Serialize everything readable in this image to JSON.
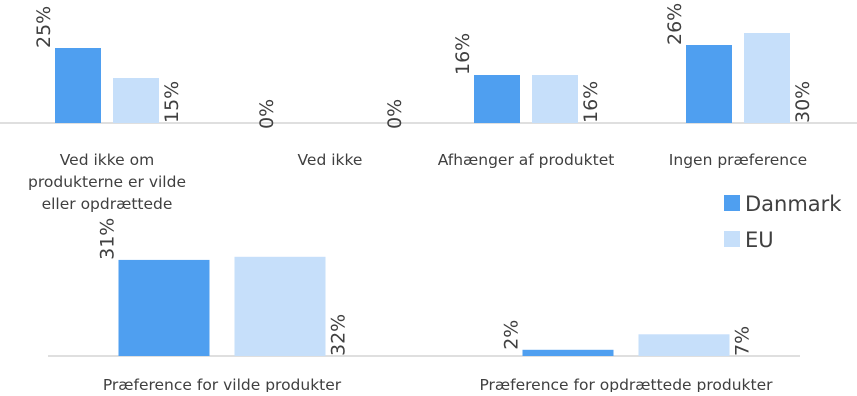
{
  "colors": {
    "danmark": "#4f9ff0",
    "eu": "#c6dffa",
    "axis": "#bfbfbf",
    "text": "#404040"
  },
  "legend": [
    {
      "name": "Danmark",
      "color": "#4f9ff0"
    },
    {
      "name": "EU",
      "color": "#c6dffa"
    }
  ],
  "chart_data": [
    {
      "type": "bar",
      "categories": [
        [
          "Ved ikke om",
          "produkterne er vilde",
          "eller opdrættede"
        ],
        [
          "Ved ikke"
        ],
        [
          "Afhænger af produktet"
        ],
        [
          "Ingen præference"
        ]
      ],
      "series": [
        {
          "name": "Danmark",
          "values": [
            25,
            0,
            16,
            26
          ],
          "labels": [
            "25%",
            "0%",
            "16%",
            "26%"
          ]
        },
        {
          "name": "EU",
          "values": [
            15,
            0,
            16,
            30
          ],
          "labels": [
            "15%",
            "0%",
            "16%",
            "30%"
          ]
        }
      ],
      "ylim": [
        0,
        30
      ],
      "legend": "right"
    },
    {
      "type": "bar",
      "categories": [
        [
          "Præference for vilde produkter"
        ],
        [
          "Præference for opdrættede produkter"
        ]
      ],
      "series": [
        {
          "name": "Danmark",
          "values": [
            31,
            2
          ],
          "labels": [
            "31%",
            "2%"
          ]
        },
        {
          "name": "EU",
          "values": [
            32,
            7
          ],
          "labels": [
            "32%",
            "7%"
          ]
        }
      ],
      "ylim": [
        0,
        32
      ],
      "legend": "right"
    }
  ]
}
